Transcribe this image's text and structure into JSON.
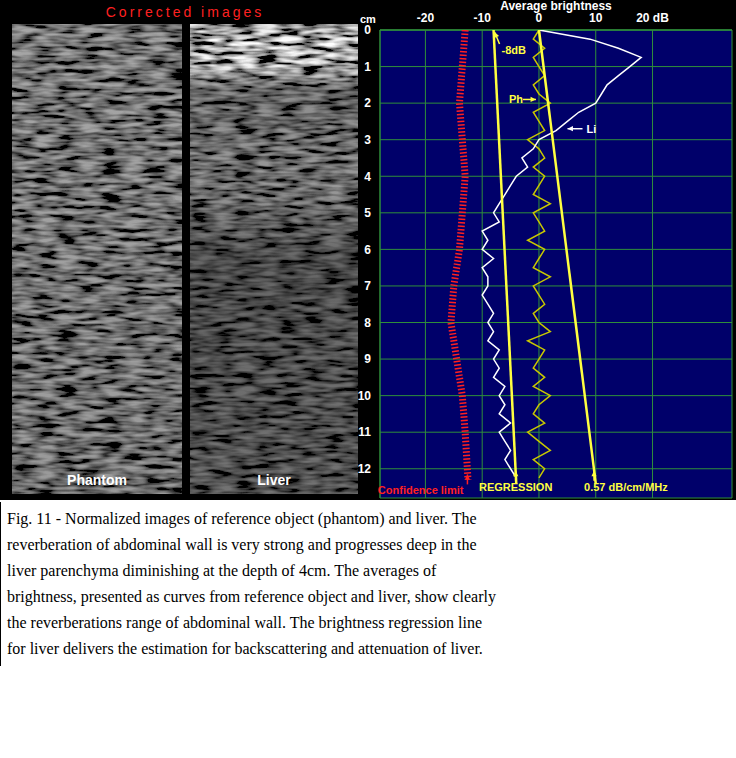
{
  "panel_title": "Corrected images",
  "images": [
    {
      "label": "Phantom"
    },
    {
      "label": "Liver"
    }
  ],
  "chart_data": {
    "type": "line",
    "x_label": "Average brightness",
    "y_label": "cm",
    "xlim": [
      -28,
      34
    ],
    "xticks": [
      -20,
      -10,
      0,
      10,
      {
        "value": 20,
        "label": "20 dB"
      }
    ],
    "ylim": [
      0,
      12.8
    ],
    "yticks": [
      0,
      1,
      2,
      3,
      4,
      5,
      6,
      7,
      8,
      9,
      10,
      11,
      12
    ],
    "grid": true,
    "series": [
      {
        "color": "#ff2020",
        "line_style": "hatched",
        "x": [
          -13,
          -13.5,
          -14,
          -13.5,
          -13,
          -13.5,
          -14,
          -15,
          -15.5,
          -14.5,
          -13.5,
          -13,
          -12.5
        ],
        "y": [
          0,
          1,
          2,
          3,
          4,
          5,
          6,
          7,
          8,
          9,
          10,
          11,
          12.3
        ]
      },
      {
        "color": "#c8c800",
        "line_style": "solid",
        "x": [
          0,
          -1,
          1,
          -1,
          0,
          1,
          -1,
          0,
          2,
          -1,
          0,
          1,
          -2,
          0,
          1,
          -1,
          1,
          0,
          -1,
          2,
          -1,
          0,
          1,
          -2,
          1,
          0,
          -1,
          2,
          -1,
          0,
          1,
          -1,
          0,
          2,
          -2,
          1,
          0,
          -1,
          1,
          -1,
          2,
          0,
          -1,
          1,
          -2,
          0,
          2,
          -1,
          1,
          0
        ],
        "y": [
          0,
          0.25,
          0.5,
          0.75,
          1,
          1.25,
          1.5,
          1.75,
          2,
          2.25,
          2.5,
          2.75,
          3,
          3.25,
          3.5,
          3.75,
          4,
          4.25,
          4.5,
          4.75,
          5,
          5.25,
          5.5,
          5.75,
          6,
          6.25,
          6.5,
          6.75,
          7,
          7.25,
          7.5,
          7.75,
          8,
          8.25,
          8.5,
          8.75,
          9,
          9.25,
          9.5,
          9.75,
          10,
          10.25,
          10.5,
          10.75,
          11,
          11.25,
          11.5,
          11.75,
          12,
          12.25
        ]
      },
      {
        "color": "#ffffff",
        "line_style": "solid",
        "x": [
          0,
          9,
          14,
          18,
          16,
          14,
          12,
          11,
          10,
          7,
          5,
          3,
          0,
          -1,
          -3,
          -2,
          -4,
          -5,
          -6,
          -7,
          -8,
          -7,
          -10,
          -9,
          -10,
          -8,
          -10,
          -9,
          -9,
          -10,
          -9,
          -8,
          -9,
          -8,
          -9,
          -7,
          -8,
          -7,
          -8,
          -6,
          -7,
          -6,
          -7,
          -5,
          -7,
          -6,
          -5,
          -6,
          -5,
          -4
        ],
        "y": [
          0,
          0.25,
          0.5,
          0.75,
          1,
          1.25,
          1.5,
          1.75,
          2,
          2.25,
          2.5,
          2.75,
          3,
          3.25,
          3.5,
          3.75,
          4,
          4.25,
          4.5,
          4.75,
          5,
          5.25,
          5.5,
          5.75,
          6,
          6.25,
          6.5,
          6.75,
          7,
          7.25,
          7.5,
          7.75,
          8,
          8.25,
          8.5,
          8.75,
          9,
          9.25,
          9.5,
          9.75,
          10,
          10.25,
          10.5,
          10.75,
          11,
          11.25,
          11.5,
          11.75,
          12,
          12.25
        ]
      },
      {
        "color": "#ffff40",
        "line_style": "solid",
        "x": [
          -8,
          -4
        ],
        "y": [
          0,
          12.4
        ]
      },
      {
        "color": "#ffff40",
        "line_style": "solid",
        "x": [
          0,
          10
        ],
        "y": [
          0,
          12.4
        ]
      }
    ],
    "annotations": [
      {
        "text": "-8dB",
        "x": -8,
        "y": 0,
        "color": "#ffff40"
      },
      {
        "text": "Ph",
        "x": 0,
        "y": 1.9,
        "color": "#ffff40"
      },
      {
        "text": "Li",
        "x": 4.5,
        "y": 2.7,
        "color": "#ffffff"
      },
      {
        "text": "0.57 dB/cm/MHz",
        "x": 9.7,
        "y": 12,
        "color": "#ffff40"
      },
      {
        "text": "REGRESSION",
        "x": -4.1,
        "y": 12,
        "color": "#ffff40"
      },
      {
        "text": "Confidence limit",
        "x": -12.6,
        "y": 12.1,
        "color": "#ff2020"
      }
    ]
  },
  "caption": "Fig. 11 - Normalized images of reference object (phantom) and liver. The reverberation of abdominal wall is very strong and progresses deep in the liver parenchyma diminishing at the depth of 4cm. The averages of brightness, presented as curves from reference object and liver, show clearly the reverberations range of abdominal wall. The brightness regression line for liver delivers the estimation for backscattering and attenuation of liver."
}
